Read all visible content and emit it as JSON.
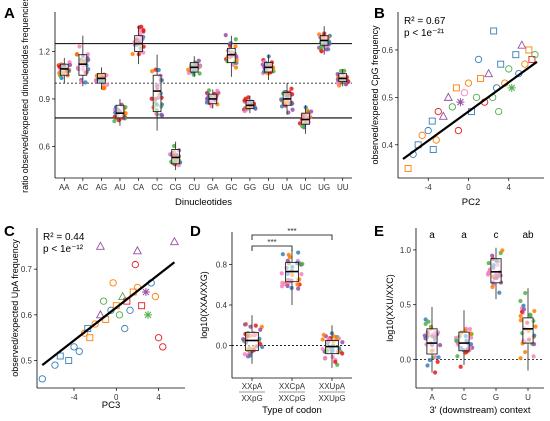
{
  "colors": {
    "palette": [
      "#e41a1c",
      "#377eb8",
      "#4daf4a",
      "#984ea3",
      "#ff7f00",
      "#f781bf"
    ],
    "fit_line": "#000000",
    "box_fill": "#ffffff"
  },
  "chart_data": [
    {
      "panel": "A",
      "type": "box",
      "xlabel": "Dinucleotides",
      "ylabel": "ratio observed/expected dinucleotides frequencies",
      "categories": [
        "AA",
        "AC",
        "AG",
        "AU",
        "CA",
        "CC",
        "CG",
        "CU",
        "GA",
        "GC",
        "GG",
        "GU",
        "UA",
        "UC",
        "UG",
        "UU"
      ],
      "box_stats": [
        {
          "lo": 1.0,
          "q1": 1.05,
          "med": 1.09,
          "q3": 1.12,
          "hi": 1.16
        },
        {
          "lo": 0.98,
          "q1": 1.05,
          "med": 1.12,
          "q3": 1.18,
          "hi": 1.3
        },
        {
          "lo": 0.96,
          "q1": 1.0,
          "med": 1.03,
          "q3": 1.06,
          "hi": 1.1
        },
        {
          "lo": 0.73,
          "q1": 0.78,
          "med": 0.81,
          "q3": 0.86,
          "hi": 0.9
        },
        {
          "lo": 1.12,
          "q1": 1.2,
          "med": 1.25,
          "q3": 1.3,
          "hi": 1.36
        },
        {
          "lo": 0.7,
          "q1": 0.82,
          "med": 0.95,
          "q3": 1.05,
          "hi": 1.18
        },
        {
          "lo": 0.45,
          "q1": 0.49,
          "med": 0.53,
          "q3": 0.58,
          "hi": 0.63
        },
        {
          "lo": 1.04,
          "q1": 1.07,
          "med": 1.1,
          "q3": 1.13,
          "hi": 1.17
        },
        {
          "lo": 0.84,
          "q1": 0.87,
          "med": 0.9,
          "q3": 0.93,
          "hi": 0.96
        },
        {
          "lo": 1.04,
          "q1": 1.13,
          "med": 1.18,
          "q3": 1.22,
          "hi": 1.3
        },
        {
          "lo": 0.81,
          "q1": 0.84,
          "med": 0.86,
          "q3": 0.89,
          "hi": 0.92
        },
        {
          "lo": 1.02,
          "q1": 1.07,
          "med": 1.1,
          "q3": 1.13,
          "hi": 1.18
        },
        {
          "lo": 0.8,
          "q1": 0.86,
          "med": 0.9,
          "q3": 0.94,
          "hi": 1.0
        },
        {
          "lo": 0.68,
          "q1": 0.74,
          "med": 0.77,
          "q3": 0.81,
          "hi": 0.86
        },
        {
          "lo": 1.18,
          "q1": 1.24,
          "med": 1.27,
          "q3": 1.3,
          "hi": 1.36
        },
        {
          "lo": 0.98,
          "q1": 1.01,
          "med": 1.03,
          "q3": 1.06,
          "hi": 1.09
        }
      ],
      "ylim": [
        0.4,
        1.45
      ],
      "yticks": [
        0.6,
        0.9,
        1.2
      ],
      "hlines": {
        "solid": [
          1.25,
          0.78
        ],
        "dotted": [
          1.0
        ]
      }
    },
    {
      "panel": "B",
      "type": "scatter",
      "xlabel": "PC2",
      "ylabel": "observed/expected CpG frequency",
      "annotation": [
        "R² = 0.67",
        "p < 1e⁻²¹"
      ],
      "xlim": [
        -7,
        7.5
      ],
      "ylim": [
        0.33,
        0.68
      ],
      "xticks": [
        -4,
        0,
        4
      ],
      "yticks": [
        0.4,
        0.5,
        0.6
      ],
      "fit": {
        "x": [
          -6.5,
          6.8
        ],
        "y": [
          0.37,
          0.575
        ]
      },
      "points": [
        {
          "x": -6.0,
          "y": 0.35,
          "s": "square",
          "c": 4
        },
        {
          "x": -5.5,
          "y": 0.38,
          "s": "circle",
          "c": 1
        },
        {
          "x": -5.0,
          "y": 0.4,
          "s": "square",
          "c": 1
        },
        {
          "x": -4.6,
          "y": 0.42,
          "s": "circle",
          "c": 4
        },
        {
          "x": -4.0,
          "y": 0.43,
          "s": "circle",
          "c": 1
        },
        {
          "x": -3.6,
          "y": 0.45,
          "s": "square",
          "c": 1
        },
        {
          "x": -3.2,
          "y": 0.41,
          "s": "circle",
          "c": 4
        },
        {
          "x": -3.0,
          "y": 0.47,
          "s": "circle",
          "c": 0
        },
        {
          "x": -2.5,
          "y": 0.46,
          "s": "triangle",
          "c": 3
        },
        {
          "x": -2.0,
          "y": 0.5,
          "s": "triangle",
          "c": 3
        },
        {
          "x": -1.6,
          "y": 0.48,
          "s": "circle",
          "c": 2
        },
        {
          "x": -1.2,
          "y": 0.52,
          "s": "square",
          "c": 4
        },
        {
          "x": -0.8,
          "y": 0.49,
          "s": "star",
          "c": 3
        },
        {
          "x": -0.4,
          "y": 0.51,
          "s": "circle",
          "c": 5
        },
        {
          "x": 0.0,
          "y": 0.53,
          "s": "circle",
          "c": 4
        },
        {
          "x": 0.3,
          "y": 0.47,
          "s": "square",
          "c": 1
        },
        {
          "x": 0.8,
          "y": 0.5,
          "s": "circle",
          "c": 2
        },
        {
          "x": 1.2,
          "y": 0.54,
          "s": "square",
          "c": 4
        },
        {
          "x": 1.6,
          "y": 0.49,
          "s": "circle",
          "c": 0
        },
        {
          "x": 2.0,
          "y": 0.55,
          "s": "triangle",
          "c": 3
        },
        {
          "x": 2.4,
          "y": 0.5,
          "s": "circle",
          "c": 2
        },
        {
          "x": 2.8,
          "y": 0.52,
          "s": "circle",
          "c": 1
        },
        {
          "x": 3.2,
          "y": 0.57,
          "s": "square",
          "c": 1
        },
        {
          "x": 3.6,
          "y": 0.53,
          "s": "circle",
          "c": 4
        },
        {
          "x": 4.0,
          "y": 0.56,
          "s": "circle",
          "c": 2
        },
        {
          "x": 4.3,
          "y": 0.52,
          "s": "star",
          "c": 2
        },
        {
          "x": 4.7,
          "y": 0.59,
          "s": "square",
          "c": 1
        },
        {
          "x": 5.0,
          "y": 0.55,
          "s": "circle",
          "c": 1
        },
        {
          "x": 5.3,
          "y": 0.61,
          "s": "triangle",
          "c": 3
        },
        {
          "x": 5.6,
          "y": 0.57,
          "s": "circle",
          "c": 4
        },
        {
          "x": 6.0,
          "y": 0.6,
          "s": "square",
          "c": 4
        },
        {
          "x": 6.3,
          "y": 0.58,
          "s": "square",
          "c": 0
        },
        {
          "x": 6.6,
          "y": 0.59,
          "s": "circle",
          "c": 2
        },
        {
          "x": 2.5,
          "y": 0.64,
          "s": "square",
          "c": 1
        },
        {
          "x": -1.0,
          "y": 0.43,
          "s": "circle",
          "c": 0
        },
        {
          "x": 3.0,
          "y": 0.47,
          "s": "circle",
          "c": 2
        },
        {
          "x": 1.0,
          "y": 0.58,
          "s": "circle",
          "c": 1
        },
        {
          "x": -3.5,
          "y": 0.39,
          "s": "square",
          "c": 1
        }
      ]
    },
    {
      "panel": "C",
      "type": "scatter",
      "xlabel": "PC3",
      "ylabel": "observed/expected UpA frequency",
      "annotation": [
        "R² = 0.44",
        "p < 1e⁻¹²"
      ],
      "xlim": [
        -7.5,
        6.5
      ],
      "ylim": [
        0.44,
        0.79
      ],
      "xticks": [
        -4,
        0,
        4
      ],
      "yticks": [
        0.5,
        0.6,
        0.7
      ],
      "fit": {
        "x": [
          -7.0,
          5.5
        ],
        "y": [
          0.49,
          0.715
        ]
      },
      "points": [
        {
          "x": -7.0,
          "y": 0.46,
          "s": "circle",
          "c": 1
        },
        {
          "x": -5.8,
          "y": 0.49,
          "s": "circle",
          "c": 1
        },
        {
          "x": -5.3,
          "y": 0.51,
          "s": "square",
          "c": 1
        },
        {
          "x": -4.5,
          "y": 0.5,
          "s": "square",
          "c": 1
        },
        {
          "x": -4.0,
          "y": 0.53,
          "s": "circle",
          "c": 1
        },
        {
          "x": -3.5,
          "y": 0.52,
          "s": "circle",
          "c": 1
        },
        {
          "x": -3.0,
          "y": 0.56,
          "s": "circle",
          "c": 4
        },
        {
          "x": -2.5,
          "y": 0.55,
          "s": "square",
          "c": 4
        },
        {
          "x": -2.0,
          "y": 0.58,
          "s": "circle",
          "c": 4
        },
        {
          "x": -1.5,
          "y": 0.6,
          "s": "triangle",
          "c": 3
        },
        {
          "x": -1.2,
          "y": 0.63,
          "s": "circle",
          "c": 2
        },
        {
          "x": -1.0,
          "y": 0.59,
          "s": "square",
          "c": 4
        },
        {
          "x": -0.5,
          "y": 0.61,
          "s": "circle",
          "c": 1
        },
        {
          "x": 0.0,
          "y": 0.62,
          "s": "square",
          "c": 4
        },
        {
          "x": 0.3,
          "y": 0.6,
          "s": "circle",
          "c": 2
        },
        {
          "x": 0.6,
          "y": 0.64,
          "s": "triangle",
          "c": 2
        },
        {
          "x": 1.0,
          "y": 0.63,
          "s": "square",
          "c": 0
        },
        {
          "x": 1.3,
          "y": 0.61,
          "s": "circle",
          "c": 1
        },
        {
          "x": 1.6,
          "y": 0.65,
          "s": "square",
          "c": 4
        },
        {
          "x": 2.0,
          "y": 0.66,
          "s": "circle",
          "c": 4
        },
        {
          "x": 2.4,
          "y": 0.62,
          "s": "square",
          "c": 0
        },
        {
          "x": 2.8,
          "y": 0.65,
          "s": "star",
          "c": 3
        },
        {
          "x": 3.0,
          "y": 0.6,
          "s": "star",
          "c": 2
        },
        {
          "x": 3.3,
          "y": 0.67,
          "s": "circle",
          "c": 1
        },
        {
          "x": 3.7,
          "y": 0.64,
          "s": "circle",
          "c": 4
        },
        {
          "x": 4.0,
          "y": 0.55,
          "s": "circle",
          "c": 0
        },
        {
          "x": 4.4,
          "y": 0.53,
          "s": "circle",
          "c": 0
        },
        {
          "x": 2.0,
          "y": 0.74,
          "s": "triangle",
          "c": 3
        },
        {
          "x": -1.5,
          "y": 0.75,
          "s": "triangle",
          "c": 3
        },
        {
          "x": 5.5,
          "y": 0.76,
          "s": "triangle",
          "c": 3
        },
        {
          "x": -2.7,
          "y": 0.57,
          "s": "square",
          "c": 1
        },
        {
          "x": 0.8,
          "y": 0.57,
          "s": "circle",
          "c": 1
        },
        {
          "x": 1.8,
          "y": 0.71,
          "s": "circle",
          "c": 0
        },
        {
          "x": -0.3,
          "y": 0.67,
          "s": "circle",
          "c": 4
        }
      ]
    },
    {
      "panel": "D",
      "type": "box",
      "xlabel": "Type of codon",
      "ylabel": "log10(XXA/XXG)",
      "categories": [
        {
          "top": "XXpA",
          "bottom": "XXpG"
        },
        {
          "top": "XXCpA",
          "bottom": "XXCpG"
        },
        {
          "top": "XXUpA",
          "bottom": "XXUpG"
        }
      ],
      "box_stats": [
        {
          "lo": -0.18,
          "q1": -0.05,
          "med": 0.05,
          "q3": 0.13,
          "hi": 0.3
        },
        {
          "lo": 0.4,
          "q1": 0.63,
          "med": 0.73,
          "q3": 0.82,
          "hi": 0.95
        },
        {
          "lo": -0.22,
          "q1": -0.08,
          "med": -0.01,
          "q3": 0.05,
          "hi": 0.2
        }
      ],
      "ylim": [
        -0.32,
        1.12
      ],
      "yticks": [
        0.0,
        0.4,
        0.8
      ],
      "hlines": {
        "dotted": [
          0.0
        ]
      },
      "significance": [
        {
          "from": 0,
          "to": 1,
          "label": "***"
        },
        {
          "from": 0,
          "to": 2,
          "label": "***"
        }
      ]
    },
    {
      "panel": "E",
      "type": "box",
      "xlabel": "3' (downstream) context",
      "ylabel": "log10(XXU/XXC)",
      "categories": [
        "A",
        "C",
        "G",
        "U"
      ],
      "box_stats": [
        {
          "lo": -0.12,
          "q1": 0.05,
          "med": 0.15,
          "q3": 0.28,
          "hi": 0.48
        },
        {
          "lo": -0.05,
          "q1": 0.08,
          "med": 0.15,
          "q3": 0.25,
          "hi": 0.45
        },
        {
          "lo": 0.55,
          "q1": 0.7,
          "med": 0.8,
          "q3": 0.92,
          "hi": 1.02
        },
        {
          "lo": -0.1,
          "q1": 0.15,
          "med": 0.28,
          "q3": 0.38,
          "hi": 0.65
        }
      ],
      "ylim": [
        -0.26,
        1.2
      ],
      "yticks": [
        0.0,
        0.5,
        1.0
      ],
      "hlines": {
        "dotted": [
          0.0
        ]
      },
      "group_letters": [
        "a",
        "a",
        "c",
        "ab"
      ]
    }
  ]
}
